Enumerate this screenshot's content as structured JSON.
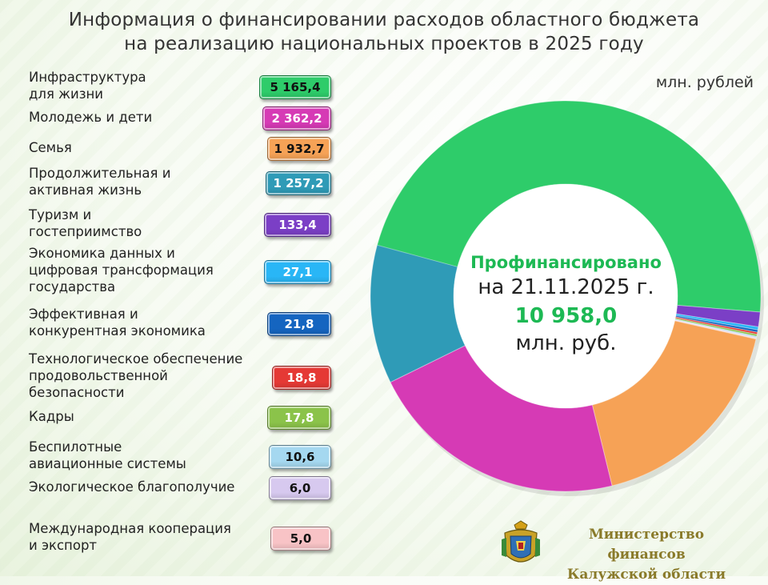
{
  "title_line1": "Информация о финансировании расходов областного бюджета",
  "title_line2": "на реализацию национальных проектов в 2025 году",
  "unit": "млн. рублей",
  "center": {
    "line1": "Профинансировано",
    "line2": "на 21.11.2025  г.",
    "line3": "10 958,0",
    "line4": "млн. руб."
  },
  "ministry": {
    "line1": "Министерство финансов",
    "line2": "Калужской области"
  },
  "colors": {
    "infrastructure": "#2ecc6a",
    "youth": "#d63ab5",
    "family": "#f6a256",
    "active_life": "#2f9bb7",
    "tourism": "#7b3fc6",
    "digital": "#29b6f6",
    "economy": "#1565c0",
    "food": "#e53935",
    "cadres": "#8bc34a",
    "drones": "#a5d8f0",
    "ecology": "#d7c9ef",
    "export": "#f8c3c6"
  },
  "chart_data": {
    "type": "pie",
    "title": "Информация о финансировании расходов областного бюджета на реализацию национальных проектов в 2025 году",
    "unit": "млн. рублей",
    "total": 10958.0,
    "categories": [
      "Инфраструктура для жизни",
      "Молодежь и дети",
      "Семья",
      "Продолжительная и активная жизнь",
      "Туризм и гостеприимство",
      "Экономика данных и цифровая трансформация государства",
      "Эффективная и конкурентная экономика",
      "Технологическое обеспечение продовольственной безопасности",
      "Кадры",
      "Беспилотные авиационные системы",
      "Экологическое благополучие",
      "Международная кооперация и экспорт"
    ],
    "values": [
      5165.4,
      2362.2,
      1932.7,
      1257.2,
      133.4,
      27.1,
      21.8,
      18.8,
      17.8,
      10.6,
      6.0,
      5.0
    ],
    "value_labels": [
      "5 165,4",
      "2 362,2",
      "1 932,7",
      "1 257,2",
      "133,4",
      "27,1",
      "21,8",
      "18,8",
      "17,8",
      "10,6",
      "6,0",
      "5,0"
    ],
    "row_labels": [
      "Инфраструктура\nдля жизни",
      "Молодежь и дети",
      "Семья",
      "Продолжительная и\nактивная жизнь",
      "Туризм и\nгостеприимство",
      "Экономика данных и\nцифровая трансформация\nгосударства",
      "Эффективная и\nконкурентная экономика",
      "Технологическое обеспечение\nпродовольственной\nбезопасности",
      "Кадры",
      "Беспилотные\nавиационные системы",
      "Экологическое благополучие",
      "Международная кооперация\nи экспорт"
    ],
    "slice_colors": [
      "#2ecc6a",
      "#d63ab5",
      "#f6a256",
      "#2f9bb7",
      "#7b3fc6",
      "#29b6f6",
      "#1565c0",
      "#e53935",
      "#8bc34a",
      "#a5d8f0",
      "#d7c9ef",
      "#f8c3c6"
    ],
    "badge_text_colors": [
      "#111111",
      "#ffffff",
      "#111111",
      "#ffffff",
      "#ffffff",
      "#ffffff",
      "#ffffff",
      "#ffffff",
      "#ffffff",
      "#111111",
      "#111111",
      "#111111"
    ]
  }
}
